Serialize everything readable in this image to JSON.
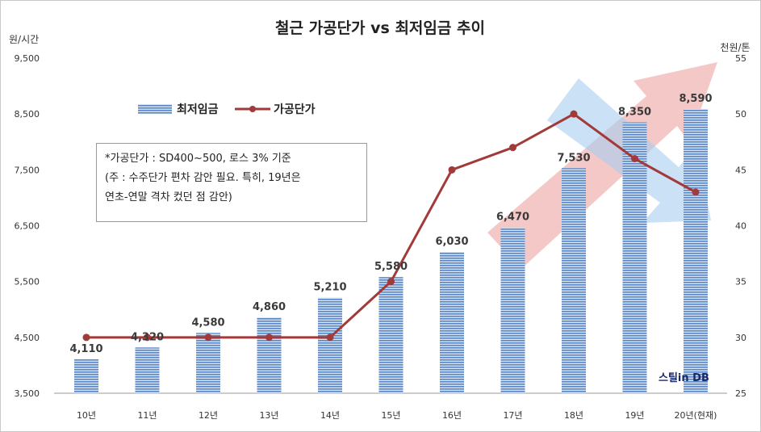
{
  "chart_data": {
    "type": "bar+line",
    "title": "철근 가공단가 vs 최저임금 추이",
    "categories": [
      "10년",
      "11년",
      "12년",
      "13년",
      "14년",
      "15년",
      "16년",
      "17년",
      "18년",
      "19년",
      "20년(현재)"
    ],
    "left_axis": {
      "unit": "원/시간",
      "ylim": [
        3500,
        9500
      ],
      "ticks": [
        "3,500",
        "4,500",
        "5,500",
        "6,500",
        "7,500",
        "8,500",
        "9,500"
      ]
    },
    "right_axis": {
      "unit": "천원/톤",
      "ylim": [
        25,
        55
      ],
      "ticks": [
        "25",
        "30",
        "35",
        "40",
        "45",
        "50",
        "55"
      ]
    },
    "series": [
      {
        "name": "최저임금",
        "type": "bar",
        "axis": "left",
        "values": [
          4110,
          4320,
          4580,
          4860,
          5210,
          5580,
          6030,
          6470,
          7530,
          8350,
          8590
        ],
        "labels": [
          "4,110",
          "4,320",
          "4,580",
          "4,860",
          "5,210",
          "5,580",
          "6,030",
          "6,470",
          "7,530",
          "8,350",
          "8,590"
        ],
        "color": "#5b87c6"
      },
      {
        "name": "가공단가",
        "type": "line",
        "axis": "right",
        "values": [
          30,
          30,
          30,
          30,
          30,
          35,
          45,
          47,
          50,
          46,
          43
        ],
        "color": "#a33a3a"
      }
    ],
    "legend": "top-left",
    "grid": false,
    "annotation_lines": [
      "*가공단가 : SD400~500, 로스 3% 기준",
      "(주 : 수주단가 편차 감안 필요. 특히, 19년은",
      "연초-연말 격차 컸던 점 감안)"
    ],
    "watermark": "스틸in DB",
    "colors": {
      "up_arrow": "#f2b6b6",
      "down_arrow": "#a9cdee"
    }
  }
}
